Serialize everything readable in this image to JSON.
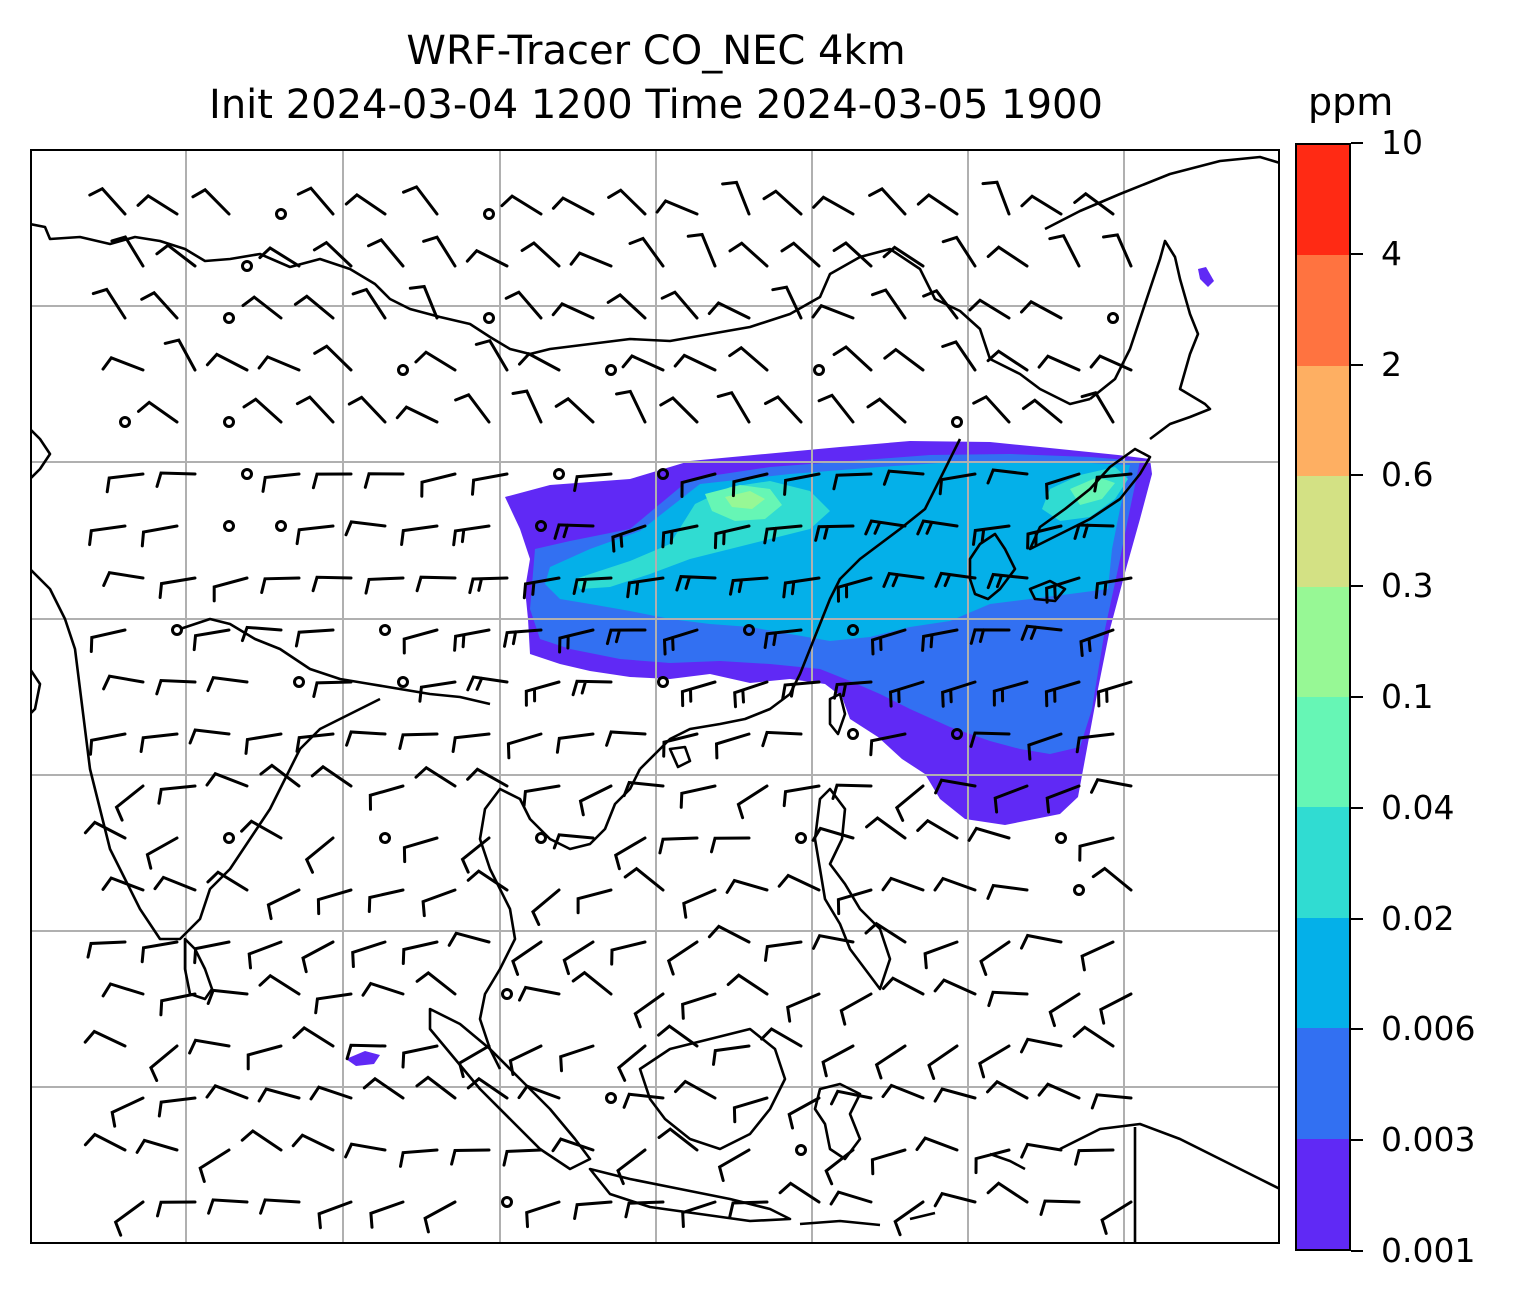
{
  "title": {
    "line1": "WRF-Tracer CO_NEC 4km",
    "line2": "Init 2024-03-04 1200 Time 2024-03-05 1900"
  },
  "colorbar": {
    "unit": "ppm",
    "levels": [
      "0.001",
      "0.003",
      "0.006",
      "0.02",
      "0.04",
      "0.1",
      "0.3",
      "0.6",
      "2",
      "4",
      "10"
    ],
    "colors": [
      "#6029f5",
      "#3270f2",
      "#04b0e9",
      "#30dcd2",
      "#66f6b5",
      "#97f895",
      "#d3e184",
      "#feaf62",
      "#ff7340",
      "#ff2a14"
    ]
  },
  "map": {
    "gridlines": "on",
    "features": [
      "coastlines",
      "country-borders",
      "wind-barbs",
      "tracer-shading"
    ],
    "plume_main_level_counts": [
      3,
      3,
      2,
      1,
      1
    ]
  }
}
